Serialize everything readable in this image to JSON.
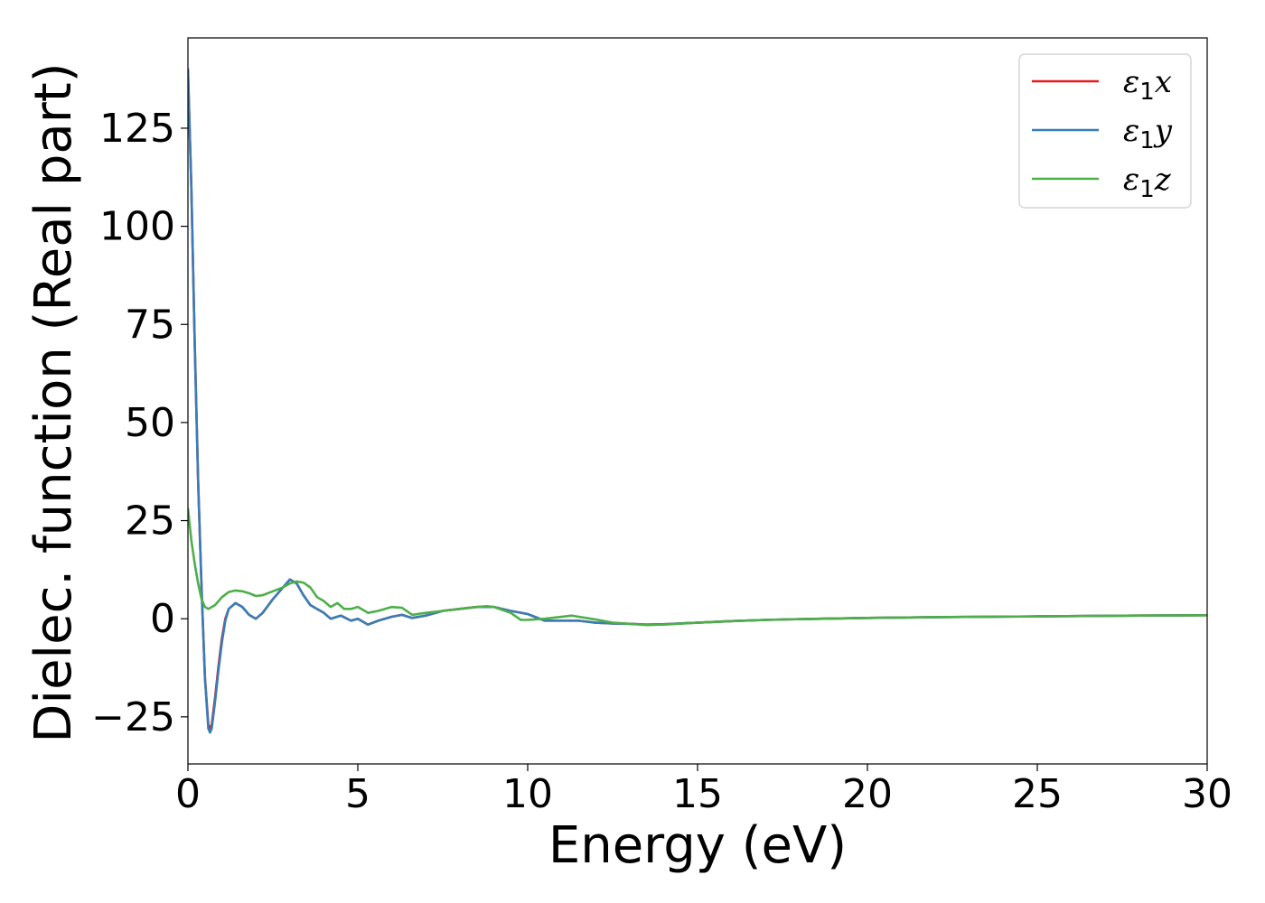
{
  "chart_data": {
    "type": "line",
    "xlabel": "Energy (eV)",
    "ylabel": "Dielec. function (Real part)",
    "xlim": [
      0,
      30
    ],
    "ylim": [
      -37,
      148
    ],
    "x_ticks": [
      "0",
      "5",
      "10",
      "15",
      "20",
      "25",
      "30"
    ],
    "x_tick_values": [
      0,
      5,
      10,
      15,
      20,
      25,
      30
    ],
    "y_ticks": [
      "−25",
      "0",
      "25",
      "50",
      "75",
      "100",
      "125"
    ],
    "y_tick_values": [
      -25,
      0,
      25,
      50,
      75,
      100,
      125
    ],
    "grid": false,
    "legend_position": "upper right",
    "series": [
      {
        "name": "ε1x",
        "color": "#e41a1c",
        "points": [
          [
            0,
            140
          ],
          [
            0.1,
            110
          ],
          [
            0.2,
            70
          ],
          [
            0.3,
            35
          ],
          [
            0.4,
            8
          ],
          [
            0.5,
            -15
          ],
          [
            0.6,
            -27
          ],
          [
            0.65,
            -28
          ],
          [
            0.7,
            -27
          ],
          [
            0.8,
            -20
          ],
          [
            0.9,
            -12
          ],
          [
            1.0,
            -5
          ],
          [
            1.1,
            0
          ],
          [
            1.2,
            2.5
          ],
          [
            1.4,
            4
          ],
          [
            1.6,
            3
          ],
          [
            1.8,
            1
          ],
          [
            2.0,
            0
          ],
          [
            2.2,
            1.5
          ],
          [
            2.5,
            5
          ],
          [
            2.8,
            8
          ],
          [
            3.0,
            10
          ],
          [
            3.2,
            9
          ],
          [
            3.4,
            6
          ],
          [
            3.6,
            3.5
          ],
          [
            3.8,
            2.5
          ],
          [
            4.0,
            1.5
          ],
          [
            4.2,
            0
          ],
          [
            4.5,
            0.8
          ],
          [
            4.8,
            -0.5
          ],
          [
            5.0,
            0
          ],
          [
            5.3,
            -1.5
          ],
          [
            5.6,
            -0.5
          ],
          [
            6.0,
            0.5
          ],
          [
            6.3,
            1
          ],
          [
            6.6,
            0.2
          ],
          [
            7.0,
            0.8
          ],
          [
            7.5,
            2
          ],
          [
            8.0,
            2.5
          ],
          [
            8.5,
            3
          ],
          [
            9.0,
            3
          ],
          [
            9.5,
            2
          ],
          [
            10.0,
            1.2
          ],
          [
            10.5,
            -0.5
          ],
          [
            11.0,
            -0.5
          ],
          [
            11.5,
            -0.5
          ],
          [
            12.0,
            -1
          ],
          [
            12.5,
            -1.2
          ],
          [
            13.0,
            -1.3
          ],
          [
            13.5,
            -1.5
          ],
          [
            14.0,
            -1.4
          ],
          [
            15.0,
            -1
          ],
          [
            16.0,
            -0.6
          ],
          [
            17.0,
            -0.3
          ],
          [
            18.0,
            -0.1
          ],
          [
            20.0,
            0.2
          ],
          [
            22.0,
            0.4
          ],
          [
            25.0,
            0.6
          ],
          [
            28.0,
            0.8
          ],
          [
            30.0,
            0.9
          ]
        ]
      },
      {
        "name": "ε1y",
        "color": "#377eb8",
        "points": [
          [
            0,
            140
          ],
          [
            0.1,
            110
          ],
          [
            0.2,
            70
          ],
          [
            0.3,
            35
          ],
          [
            0.4,
            8
          ],
          [
            0.5,
            -15
          ],
          [
            0.6,
            -28
          ],
          [
            0.65,
            -29
          ],
          [
            0.7,
            -28
          ],
          [
            0.8,
            -21
          ],
          [
            0.9,
            -13
          ],
          [
            1.0,
            -6
          ],
          [
            1.1,
            -0.5
          ],
          [
            1.2,
            2.5
          ],
          [
            1.4,
            4
          ],
          [
            1.6,
            3
          ],
          [
            1.8,
            1
          ],
          [
            2.0,
            0
          ],
          [
            2.2,
            1.5
          ],
          [
            2.5,
            5
          ],
          [
            2.8,
            8
          ],
          [
            3.0,
            10
          ],
          [
            3.2,
            9
          ],
          [
            3.4,
            6
          ],
          [
            3.6,
            3.5
          ],
          [
            3.8,
            2.5
          ],
          [
            4.0,
            1.5
          ],
          [
            4.2,
            0
          ],
          [
            4.5,
            0.8
          ],
          [
            4.8,
            -0.5
          ],
          [
            5.0,
            0
          ],
          [
            5.3,
            -1.5
          ],
          [
            5.6,
            -0.5
          ],
          [
            6.0,
            0.5
          ],
          [
            6.3,
            1
          ],
          [
            6.6,
            0.2
          ],
          [
            7.0,
            0.8
          ],
          [
            7.5,
            2
          ],
          [
            8.0,
            2.5
          ],
          [
            8.5,
            3
          ],
          [
            9.0,
            3
          ],
          [
            9.5,
            2
          ],
          [
            10.0,
            1.2
          ],
          [
            10.5,
            -0.5
          ],
          [
            11.0,
            -0.5
          ],
          [
            11.5,
            -0.5
          ],
          [
            12.0,
            -1
          ],
          [
            12.5,
            -1.2
          ],
          [
            13.0,
            -1.3
          ],
          [
            13.5,
            -1.5
          ],
          [
            14.0,
            -1.4
          ],
          [
            15.0,
            -1
          ],
          [
            16.0,
            -0.6
          ],
          [
            17.0,
            -0.3
          ],
          [
            18.0,
            -0.1
          ],
          [
            20.0,
            0.2
          ],
          [
            22.0,
            0.4
          ],
          [
            25.0,
            0.6
          ],
          [
            28.0,
            0.8
          ],
          [
            30.0,
            0.9
          ]
        ]
      },
      {
        "name": "ε1z",
        "color": "#4daf4a",
        "points": [
          [
            0,
            28
          ],
          [
            0.1,
            20
          ],
          [
            0.2,
            14
          ],
          [
            0.3,
            9
          ],
          [
            0.4,
            5
          ],
          [
            0.5,
            3
          ],
          [
            0.6,
            2.5
          ],
          [
            0.8,
            3.5
          ],
          [
            1.0,
            5.5
          ],
          [
            1.2,
            6.8
          ],
          [
            1.4,
            7.2
          ],
          [
            1.6,
            7
          ],
          [
            1.8,
            6.5
          ],
          [
            2.0,
            5.8
          ],
          [
            2.2,
            6
          ],
          [
            2.5,
            7
          ],
          [
            2.8,
            8
          ],
          [
            3.0,
            9
          ],
          [
            3.2,
            9.5
          ],
          [
            3.4,
            9.2
          ],
          [
            3.6,
            8
          ],
          [
            3.8,
            5.5
          ],
          [
            4.0,
            4.5
          ],
          [
            4.2,
            3
          ],
          [
            4.4,
            4
          ],
          [
            4.6,
            2.5
          ],
          [
            4.8,
            2.5
          ],
          [
            5.0,
            3
          ],
          [
            5.3,
            1.5
          ],
          [
            5.6,
            2
          ],
          [
            6.0,
            3
          ],
          [
            6.3,
            2.8
          ],
          [
            6.6,
            1
          ],
          [
            7.0,
            1.5
          ],
          [
            7.5,
            2
          ],
          [
            8.0,
            2.5
          ],
          [
            8.5,
            3
          ],
          [
            8.8,
            3.2
          ],
          [
            9.0,
            3
          ],
          [
            9.5,
            1.5
          ],
          [
            9.8,
            -0.3
          ],
          [
            10.0,
            -0.3
          ],
          [
            10.5,
            0
          ],
          [
            11.0,
            0.5
          ],
          [
            11.3,
            0.8
          ],
          [
            11.5,
            0.5
          ],
          [
            12.0,
            -0.2
          ],
          [
            12.5,
            -1
          ],
          [
            13.0,
            -1.3
          ],
          [
            13.5,
            -1.6
          ],
          [
            14.0,
            -1.5
          ],
          [
            15.0,
            -1
          ],
          [
            16.0,
            -0.6
          ],
          [
            17.0,
            -0.3
          ],
          [
            18.0,
            -0.1
          ],
          [
            20.0,
            0.2
          ],
          [
            22.0,
            0.4
          ],
          [
            25.0,
            0.6
          ],
          [
            28.0,
            0.8
          ],
          [
            30.0,
            0.9
          ]
        ]
      }
    ]
  }
}
